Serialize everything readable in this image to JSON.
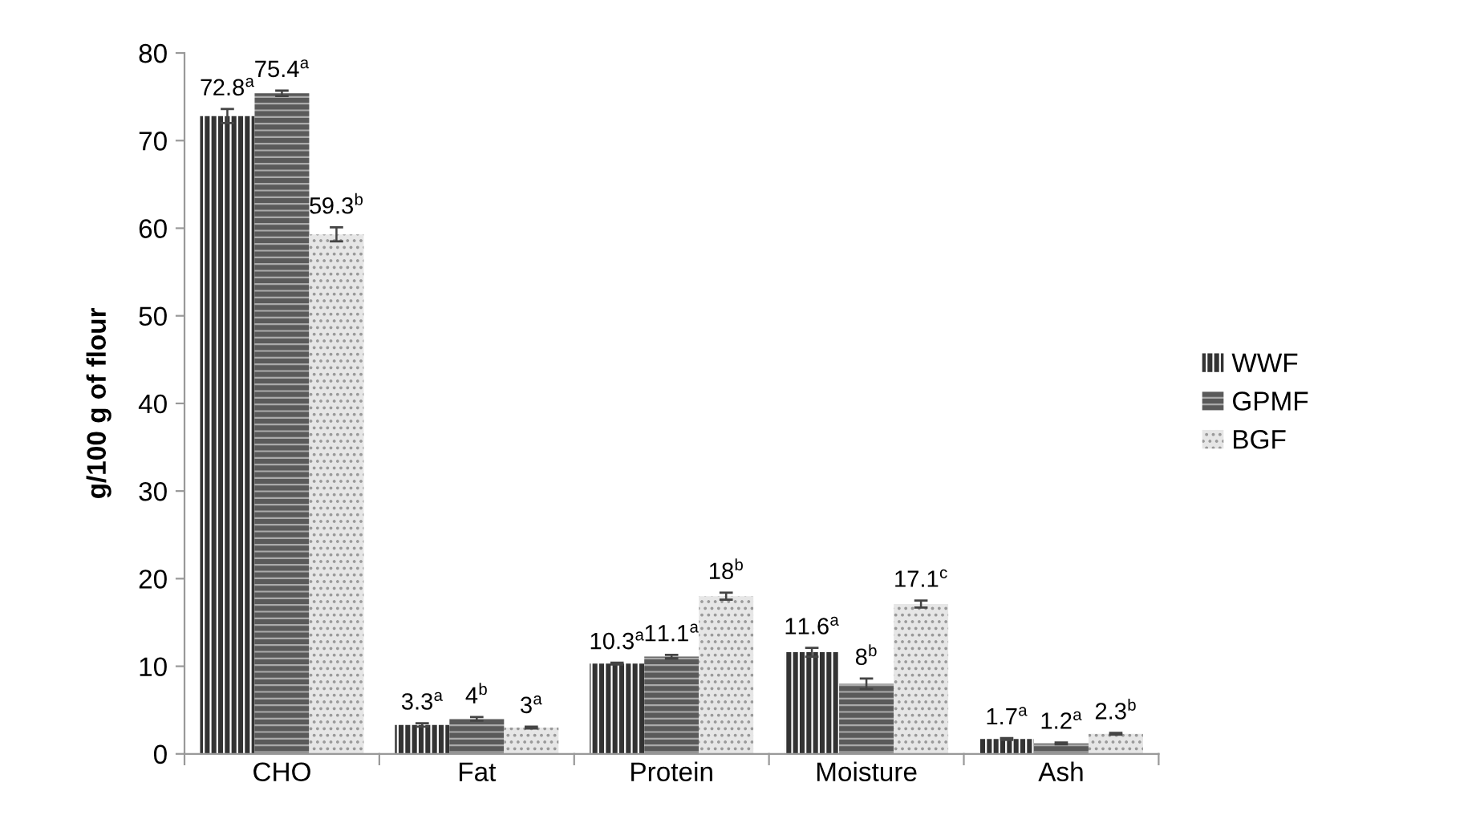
{
  "chart_data": {
    "type": "bar",
    "ylabel": "g/100 g of flour",
    "categories": [
      "CHO",
      "Fat",
      "Protein",
      "Moisture",
      "Ash"
    ],
    "series": [
      {
        "name": "WWF",
        "color": "#333333",
        "values": [
          72.8,
          3.3,
          10.3,
          11.6,
          1.7
        ],
        "errors": [
          0.8,
          0.2,
          0.1,
          0.5,
          0.1
        ],
        "value_labels": [
          "72.8$^{a}$",
          "3.3$^{a}$",
          "10.3$^{a}$",
          "11.6$^{a}$",
          "1.7$^{a}$"
        ]
      },
      {
        "name": "GPMF",
        "color": "#5a5a5a",
        "values": [
          75.4,
          4,
          11.1,
          8,
          1.2
        ],
        "errors": [
          0.3,
          0.2,
          0.2,
          0.6,
          0.1
        ],
        "value_labels": [
          "75.4$^{a}$",
          "4$^{b}$",
          "11.1$^{a}$",
          "8$^{b}$",
          "1.2$^{a}$"
        ]
      },
      {
        "name": "BGF",
        "color": "#e6e6e6",
        "values": [
          59.3,
          3,
          18,
          17.1,
          2.3
        ],
        "errors": [
          0.8,
          0.1,
          0.4,
          0.4,
          0.1
        ],
        "value_labels": [
          "59.3$^{b}$",
          "3$^{a}$",
          "18$^{b}$",
          "17.1$^{c}$",
          "2.3$^{b}$"
        ]
      }
    ],
    "ylim": [
      0,
      80
    ],
    "yticks": [
      0,
      10,
      20,
      30,
      40,
      50,
      60,
      70,
      80
    ],
    "grid": false,
    "legend": "right"
  }
}
